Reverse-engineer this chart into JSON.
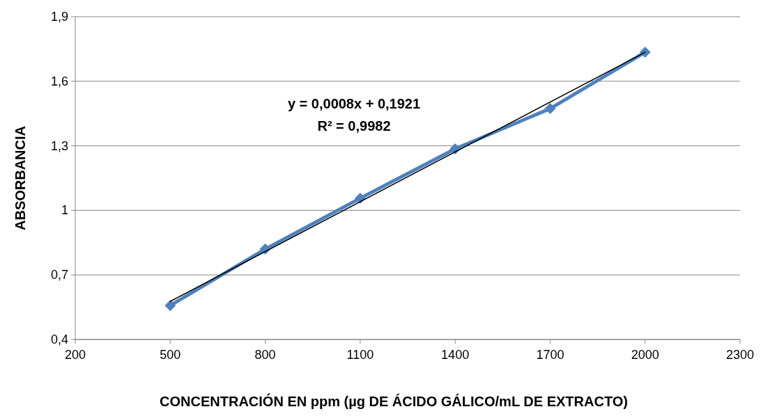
{
  "chart_data": {
    "type": "line",
    "xlabel": "CONCENTRACIÓN EN ppm (µg DE ÁCIDO GÁLICO/mL DE EXTRACTO)",
    "ylabel": "ABSORBANCIA",
    "annotations": [
      "y = 0,0008x + 0,1921",
      "R² = 0,9982"
    ],
    "xlim": [
      200,
      2300
    ],
    "xticks": [
      200,
      500,
      800,
      1100,
      1400,
      1700,
      2000,
      2300
    ],
    "ylim": [
      0.4,
      1.9
    ],
    "yticks": [
      {
        "value": 0.4,
        "label": "0,4"
      },
      {
        "value": 0.7,
        "label": "0,7"
      },
      1,
      {
        "value": 1.3,
        "label": "1,3"
      },
      {
        "value": 1.6,
        "label": "1,6"
      },
      {
        "value": 1.9,
        "label": "1,9"
      }
    ],
    "grid": "y",
    "series": [
      {
        "color": "#4f81bd",
        "marker": "diamond",
        "x": [
          500,
          800,
          1100,
          1400,
          1700,
          2000
        ],
        "values": [
          0.558,
          0.82,
          1.056,
          1.286,
          1.473,
          1.735
        ]
      },
      {
        "color": "#000000",
        "marker": "none",
        "x": [
          500,
          2000
        ],
        "values": [
          0.577,
          1.735
        ]
      }
    ]
  }
}
